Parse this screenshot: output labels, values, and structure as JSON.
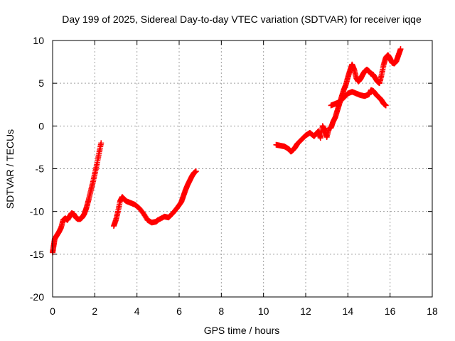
{
  "chart_data": {
    "type": "scatter",
    "title": "Day 199 of 2025, Sidereal Day-to-day VTEC variation (SDTVAR) for receiver iqqe",
    "xlabel": "GPS time / hours",
    "ylabel": "SDTVAR / TECUs",
    "xlim": [
      0,
      18
    ],
    "ylim": [
      -20,
      10
    ],
    "xticks": [
      "0",
      "2",
      "4",
      "6",
      "8",
      "10",
      "12",
      "14",
      "16",
      "18"
    ],
    "yticks": [
      "10",
      "5",
      "0",
      "-5",
      "-10",
      "-15",
      "-20"
    ],
    "grid": true,
    "marker": "+",
    "series": [
      {
        "name": "SDTVAR",
        "color": "#ff0000",
        "points": [
          [
            0.0,
            -14.8
          ],
          [
            0.05,
            -14.0
          ],
          [
            0.1,
            -13.2
          ],
          [
            0.2,
            -12.8
          ],
          [
            0.3,
            -12.4
          ],
          [
            0.4,
            -11.9
          ],
          [
            0.5,
            -11.0
          ],
          [
            0.6,
            -10.8
          ],
          [
            0.7,
            -11.0
          ],
          [
            0.8,
            -10.6
          ],
          [
            0.9,
            -10.2
          ],
          [
            1.0,
            -10.3
          ],
          [
            1.1,
            -10.7
          ],
          [
            1.2,
            -10.9
          ],
          [
            1.3,
            -10.9
          ],
          [
            1.4,
            -10.7
          ],
          [
            1.5,
            -10.3
          ],
          [
            1.6,
            -9.6
          ],
          [
            1.7,
            -8.7
          ],
          [
            1.8,
            -7.7
          ],
          [
            1.9,
            -6.7
          ],
          [
            2.0,
            -5.6
          ],
          [
            2.1,
            -4.5
          ],
          [
            2.2,
            -3.2
          ],
          [
            2.3,
            -2.0
          ],
          [
            2.9,
            -11.7
          ],
          [
            3.0,
            -11.0
          ],
          [
            3.1,
            -10.0
          ],
          [
            3.2,
            -8.8
          ],
          [
            3.3,
            -8.3
          ],
          [
            3.4,
            -8.6
          ],
          [
            3.5,
            -8.8
          ],
          [
            3.7,
            -9.0
          ],
          [
            3.9,
            -9.2
          ],
          [
            4.1,
            -9.6
          ],
          [
            4.3,
            -10.2
          ],
          [
            4.5,
            -11.0
          ],
          [
            4.7,
            -11.3
          ],
          [
            4.9,
            -11.2
          ],
          [
            5.0,
            -11.0
          ],
          [
            5.3,
            -10.6
          ],
          [
            5.5,
            -10.7
          ],
          [
            5.7,
            -10.2
          ],
          [
            5.9,
            -9.6
          ],
          [
            6.1,
            -8.9
          ],
          [
            6.2,
            -8.2
          ],
          [
            6.3,
            -7.5
          ],
          [
            6.4,
            -6.9
          ],
          [
            6.5,
            -6.4
          ],
          [
            6.6,
            -5.9
          ],
          [
            6.7,
            -5.5
          ],
          [
            6.8,
            -5.3
          ],
          [
            10.6,
            -2.2
          ],
          [
            10.8,
            -2.3
          ],
          [
            11.0,
            -2.4
          ],
          [
            11.2,
            -2.7
          ],
          [
            11.3,
            -3.0
          ],
          [
            11.4,
            -2.8
          ],
          [
            11.5,
            -2.5
          ],
          [
            11.6,
            -2.1
          ],
          [
            11.8,
            -1.6
          ],
          [
            12.0,
            -1.1
          ],
          [
            12.2,
            -0.8
          ],
          [
            12.4,
            -1.2
          ],
          [
            12.6,
            -0.6
          ],
          [
            12.7,
            -1.4
          ],
          [
            12.8,
            0.0
          ],
          [
            12.9,
            -0.5
          ],
          [
            13.0,
            -1.3
          ],
          [
            13.1,
            -0.3
          ],
          [
            13.2,
            -0.2
          ],
          [
            13.3,
            0.5
          ],
          [
            13.4,
            1.0
          ],
          [
            13.5,
            1.8
          ],
          [
            13.6,
            2.6
          ],
          [
            13.7,
            3.4
          ],
          [
            13.8,
            4.2
          ],
          [
            13.9,
            4.8
          ],
          [
            14.0,
            5.7
          ],
          [
            14.1,
            6.5
          ],
          [
            14.2,
            7.2
          ],
          [
            14.3,
            6.6
          ],
          [
            14.4,
            5.6
          ],
          [
            14.5,
            5.2
          ],
          [
            14.6,
            5.5
          ],
          [
            14.7,
            6.0
          ],
          [
            14.8,
            6.4
          ],
          [
            14.9,
            6.6
          ],
          [
            15.0,
            6.4
          ],
          [
            15.1,
            6.1
          ],
          [
            15.2,
            6.0
          ],
          [
            15.3,
            5.6
          ],
          [
            15.4,
            5.2
          ],
          [
            15.5,
            5.0
          ],
          [
            15.6,
            6.0
          ],
          [
            15.7,
            7.2
          ],
          [
            15.8,
            8.0
          ],
          [
            15.9,
            8.3
          ],
          [
            16.0,
            7.9
          ],
          [
            16.1,
            7.4
          ],
          [
            16.2,
            7.3
          ],
          [
            16.3,
            7.6
          ],
          [
            16.4,
            8.3
          ],
          [
            16.5,
            9.0
          ],
          [
            13.2,
            2.4
          ],
          [
            13.4,
            2.6
          ],
          [
            13.6,
            2.8
          ],
          [
            13.8,
            3.3
          ],
          [
            14.0,
            3.8
          ],
          [
            14.2,
            4.0
          ],
          [
            14.4,
            3.8
          ],
          [
            14.6,
            3.6
          ],
          [
            14.8,
            3.5
          ],
          [
            15.0,
            3.7
          ],
          [
            15.1,
            4.2
          ],
          [
            15.2,
            4.1
          ],
          [
            15.3,
            3.8
          ],
          [
            15.4,
            3.5
          ],
          [
            15.5,
            3.3
          ],
          [
            15.6,
            3.0
          ],
          [
            15.7,
            2.6
          ],
          [
            15.8,
            2.4
          ]
        ]
      }
    ]
  }
}
